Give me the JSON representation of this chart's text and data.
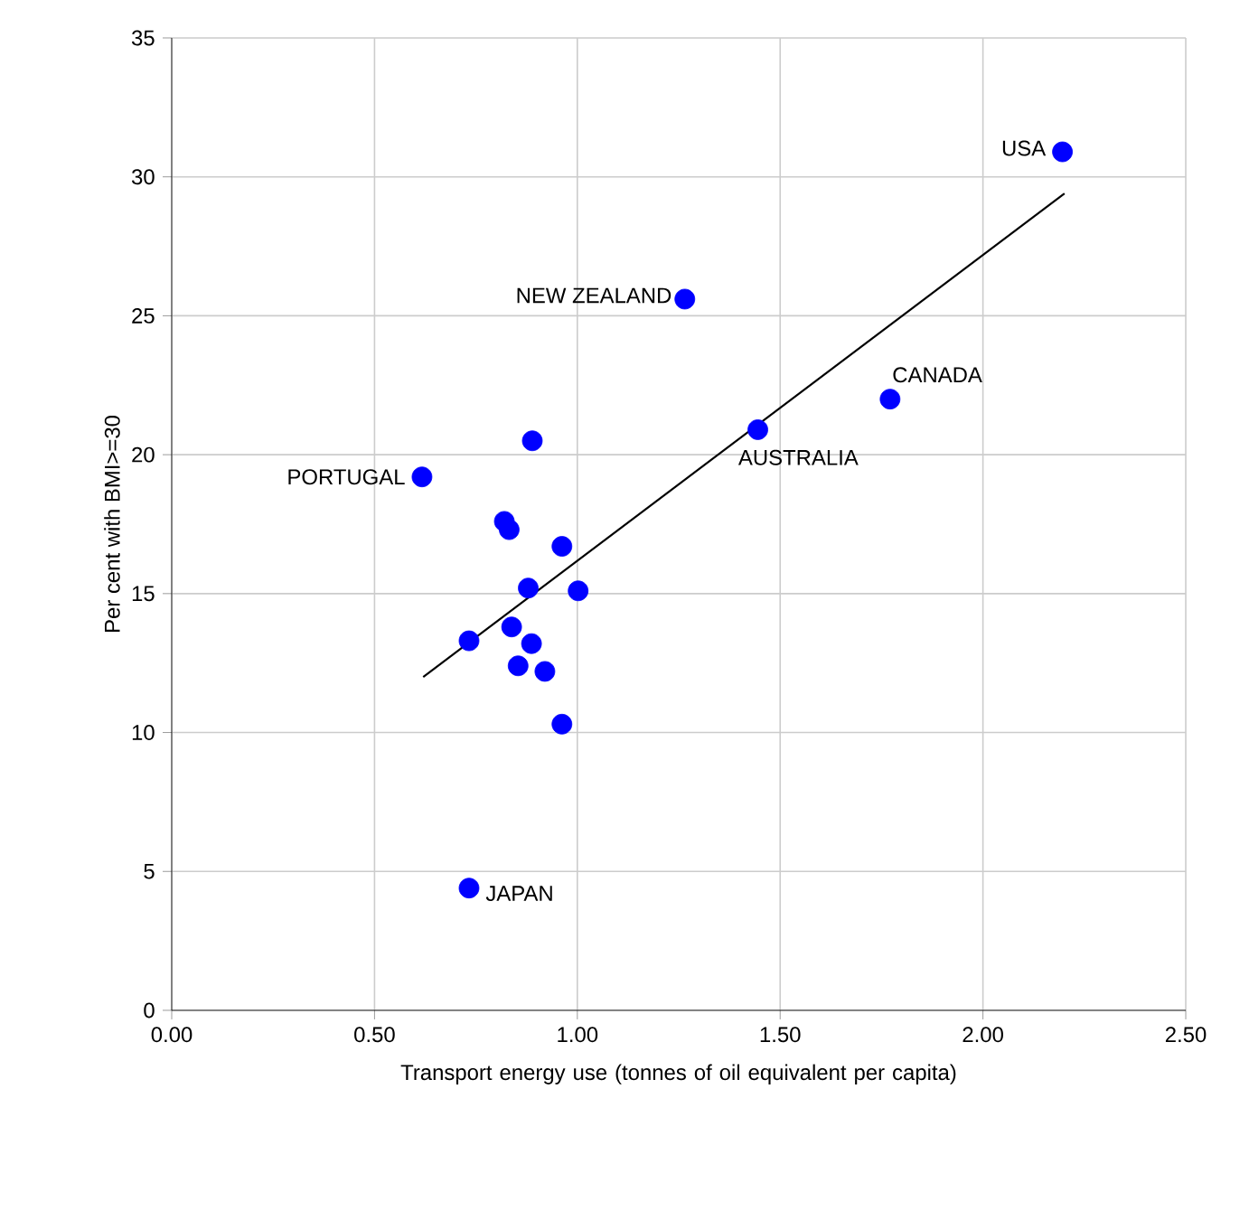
{
  "chart_data": {
    "type": "scatter",
    "xlabel": "Transport energy use (tonnes of oil equivalent per capita)",
    "ylabel": "Per cent with BMI>=30",
    "xlim": [
      0,
      2.5
    ],
    "ylim": [
      0,
      35
    ],
    "xticks": [
      {
        "value": 0,
        "label": "0.00"
      },
      {
        "value": 0.5,
        "label": "0.50"
      },
      {
        "value": 1,
        "label": "1.00"
      },
      {
        "value": 1.5,
        "label": "1.50"
      },
      {
        "value": 2,
        "label": "2.00"
      },
      {
        "value": 2.5,
        "label": "2.50"
      }
    ],
    "yticks": [
      0,
      5,
      10,
      15,
      20,
      25,
      30,
      35
    ],
    "grid": true,
    "marker": "circle",
    "series": [
      {
        "color": "#0000ff",
        "x": [
          2.196,
          1.265,
          1.771,
          1.445,
          0.617,
          0.733,
          0.889,
          0.82,
          0.832,
          0.962,
          0.879,
          1.002,
          0.838,
          0.733,
          0.887,
          0.854,
          0.92,
          0.962
        ],
        "values": [
          30.9,
          25.6,
          22.0,
          20.9,
          19.2,
          4.4,
          20.5,
          17.6,
          17.3,
          16.7,
          15.2,
          15.1,
          13.8,
          13.3,
          13.2,
          12.4,
          12.2,
          10.3
        ]
      },
      {
        "type": "line",
        "color": "#000000",
        "marker": "none",
        "x": [
          0.62,
          2.201
        ],
        "values": [
          12.0,
          29.4
        ]
      }
    ],
    "annotations": [
      {
        "text": "USA",
        "x": 2.196,
        "y": 30.9
      },
      {
        "text": "NEW ZEALAND",
        "x": 1.265,
        "y": 25.6
      },
      {
        "text": "CANADA",
        "x": 1.771,
        "y": 22.0
      },
      {
        "text": "AUSTRALIA",
        "x": 1.445,
        "y": 20.9
      },
      {
        "text": "PORTUGAL",
        "x": 0.617,
        "y": 19.2
      },
      {
        "text": "JAPAN",
        "x": 0.733,
        "y": 4.4
      }
    ]
  }
}
